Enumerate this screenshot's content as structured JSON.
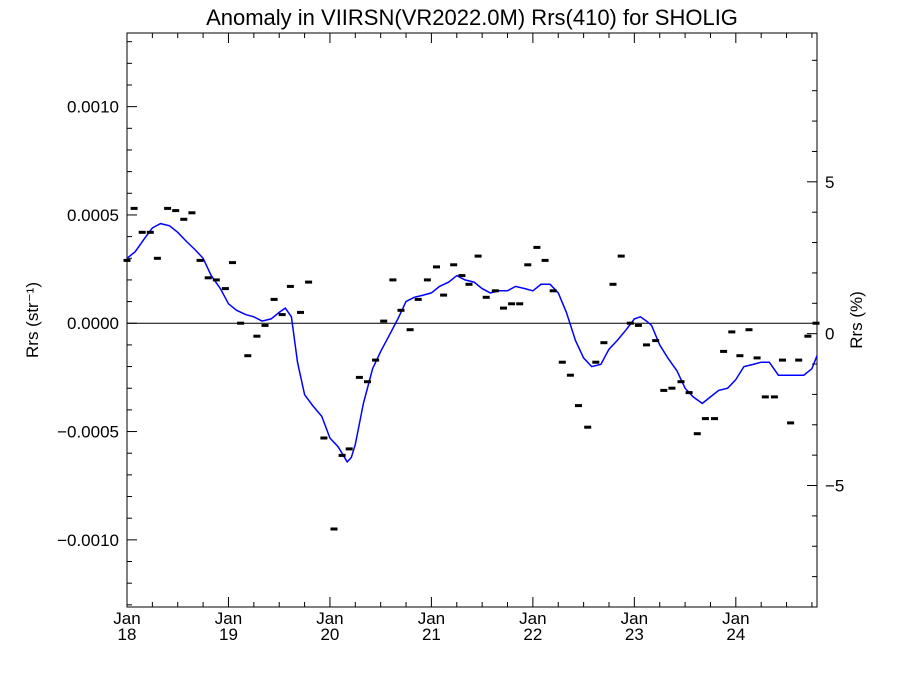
{
  "chart_data": {
    "type": "line",
    "title": "Anomaly in VIIRSN(VR2022.0M) Rrs(410) for SHOLIG",
    "ylabel": "Rrs (str⁻¹)",
    "y2label": "Rrs (%)",
    "xlim": [
      2018.0,
      2024.8
    ],
    "ylim": [
      -0.00131,
      0.00134
    ],
    "y2lim": [
      -9.0,
      9.9
    ],
    "grid": false,
    "zero_line": true,
    "x_ticks": [
      {
        "value": 2018.0,
        "label1": "Jan",
        "label2": "18"
      },
      {
        "value": 2019.0,
        "label1": "Jan",
        "label2": "19"
      },
      {
        "value": 2020.0,
        "label1": "Jan",
        "label2": "20"
      },
      {
        "value": 2021.0,
        "label1": "Jan",
        "label2": "21"
      },
      {
        "value": 2022.0,
        "label1": "Jan",
        "label2": "22"
      },
      {
        "value": 2023.0,
        "label1": "Jan",
        "label2": "23"
      },
      {
        "value": 2024.0,
        "label1": "Jan",
        "label2": "24"
      }
    ],
    "y_ticks": [
      {
        "value": 0.001,
        "label": "0.0010"
      },
      {
        "value": 0.0005,
        "label": "0.0005"
      },
      {
        "value": 0.0,
        "label": "0.0000"
      },
      {
        "value": -0.0005,
        "label": "−0.0005"
      },
      {
        "value": -0.001,
        "label": "−0.0010"
      }
    ],
    "y2_ticks": [
      {
        "value": 5,
        "label": "5"
      },
      {
        "value": 0,
        "label": "0"
      },
      {
        "value": -5,
        "label": "−5"
      }
    ],
    "series": [
      {
        "kind": "markers",
        "color": "#000000",
        "x": [
          2018.0,
          2018.07,
          2018.15,
          2018.23,
          2018.3,
          2018.4,
          2018.48,
          2018.56,
          2018.64,
          2018.72,
          2018.8,
          2018.88,
          2018.97,
          2019.04,
          2019.12,
          2019.19,
          2019.28,
          2019.36,
          2019.45,
          2019.53,
          2019.61,
          2019.71,
          2019.79,
          2019.94,
          2020.04,
          2020.12,
          2020.19,
          2020.29,
          2020.37,
          2020.45,
          2020.53,
          2020.62,
          2020.7,
          2020.79,
          2020.87,
          2020.96,
          2021.05,
          2021.12,
          2021.22,
          2021.3,
          2021.37,
          2021.46,
          2021.54,
          2021.63,
          2021.71,
          2021.79,
          2021.87,
          2021.95,
          2022.04,
          2022.12,
          2022.2,
          2022.29,
          2022.37,
          2022.45,
          2022.54,
          2022.62,
          2022.7,
          2022.79,
          2022.87,
          2022.96,
          2023.04,
          2023.12,
          2023.21,
          2023.29,
          2023.37,
          2023.46,
          2023.54,
          2023.62,
          2023.7,
          2023.79,
          2023.88,
          2023.96,
          2024.04,
          2024.13,
          2024.21,
          2024.29,
          2024.38,
          2024.46,
          2024.54,
          2024.62,
          2024.71,
          2024.79
        ],
        "y": [
          0.00029,
          0.00053,
          0.00042,
          0.00042,
          0.0003,
          0.00053,
          0.00052,
          0.00048,
          0.00051,
          0.00029,
          0.00021,
          0.0002,
          0.00016,
          0.00028,
          0.0,
          -0.00015,
          -6e-05,
          -1e-05,
          0.00011,
          4e-05,
          0.00017,
          5e-05,
          0.00019,
          -0.00053,
          -0.00095,
          -0.00061,
          -0.00058,
          -0.00025,
          -0.00027,
          -0.00017,
          1e-05,
          0.0002,
          6e-05,
          -3e-05,
          0.00011,
          0.0002,
          0.00026,
          0.00013,
          0.00027,
          0.00022,
          0.00018,
          0.00031,
          0.00012,
          0.00015,
          7e-05,
          9e-05,
          9e-05,
          0.00027,
          0.00035,
          0.00029,
          0.00015,
          -0.00018,
          -0.00024,
          -0.00038,
          -0.00048,
          -0.00018,
          -9e-05,
          0.00018,
          0.00031,
          0.0,
          -1e-05,
          -0.0001,
          -8e-05,
          -0.00031,
          -0.0003,
          -0.00027,
          -0.00032,
          -0.00051,
          -0.00044,
          -0.00044,
          -0.00013,
          -4e-05,
          -0.00015,
          -3e-05,
          -0.00016,
          -0.00034,
          -0.00034,
          -0.00017,
          -0.00046,
          -0.00017,
          -6e-05,
          0.0
        ]
      },
      {
        "kind": "line",
        "color": "#0000ff",
        "x": [
          2018.0,
          2018.08,
          2018.17,
          2018.25,
          2018.33,
          2018.42,
          2018.5,
          2018.58,
          2018.67,
          2018.75,
          2018.83,
          2018.92,
          2019.0,
          2019.08,
          2019.17,
          2019.25,
          2019.33,
          2019.42,
          2019.5,
          2019.56,
          2019.62,
          2019.68,
          2019.75,
          2019.83,
          2019.92,
          2020.0,
          2020.08,
          2020.17,
          2020.21,
          2020.25,
          2020.33,
          2020.42,
          2020.5,
          2020.58,
          2020.67,
          2020.75,
          2020.83,
          2020.92,
          2021.0,
          2021.08,
          2021.17,
          2021.25,
          2021.33,
          2021.42,
          2021.5,
          2021.58,
          2021.67,
          2021.75,
          2021.83,
          2021.92,
          2022.0,
          2022.08,
          2022.17,
          2022.25,
          2022.33,
          2022.42,
          2022.5,
          2022.58,
          2022.67,
          2022.75,
          2022.83,
          2022.92,
          2023.0,
          2023.06,
          2023.12,
          2023.17,
          2023.25,
          2023.33,
          2023.42,
          2023.5,
          2023.58,
          2023.67,
          2023.75,
          2023.83,
          2023.92,
          2024.0,
          2024.08,
          2024.17,
          2024.25,
          2024.33,
          2024.42,
          2024.5,
          2024.58,
          2024.67,
          2024.75,
          2024.8
        ],
        "y": [
          0.0003,
          0.00033,
          0.00039,
          0.00044,
          0.00046,
          0.00045,
          0.00042,
          0.00038,
          0.00034,
          0.0003,
          0.00022,
          0.00016,
          9e-05,
          6e-05,
          4e-05,
          3e-05,
          1e-05,
          2e-05,
          5e-05,
          7e-05,
          3e-05,
          -0.00018,
          -0.00033,
          -0.00038,
          -0.00043,
          -0.00053,
          -0.00057,
          -0.00064,
          -0.00062,
          -0.00056,
          -0.00037,
          -0.00021,
          -0.00013,
          -6e-05,
          2e-05,
          0.0001,
          0.00012,
          0.00013,
          0.00014,
          0.00017,
          0.00019,
          0.00022,
          0.0002,
          0.00019,
          0.00016,
          0.00014,
          0.00015,
          0.00015,
          0.00017,
          0.00016,
          0.00015,
          0.00018,
          0.00018,
          0.00014,
          5e-05,
          -8e-05,
          -0.00016,
          -0.0002,
          -0.00019,
          -0.00012,
          -8e-05,
          -3e-05,
          2e-05,
          3e-05,
          1e-05,
          -1e-05,
          -0.0001,
          -0.00016,
          -0.00022,
          -0.0003,
          -0.00034,
          -0.00037,
          -0.00034,
          -0.00031,
          -0.0003,
          -0.00026,
          -0.0002,
          -0.00019,
          -0.00018,
          -0.00018,
          -0.00024,
          -0.00024,
          -0.00024,
          -0.00024,
          -0.00021,
          -0.00015
        ]
      }
    ]
  }
}
